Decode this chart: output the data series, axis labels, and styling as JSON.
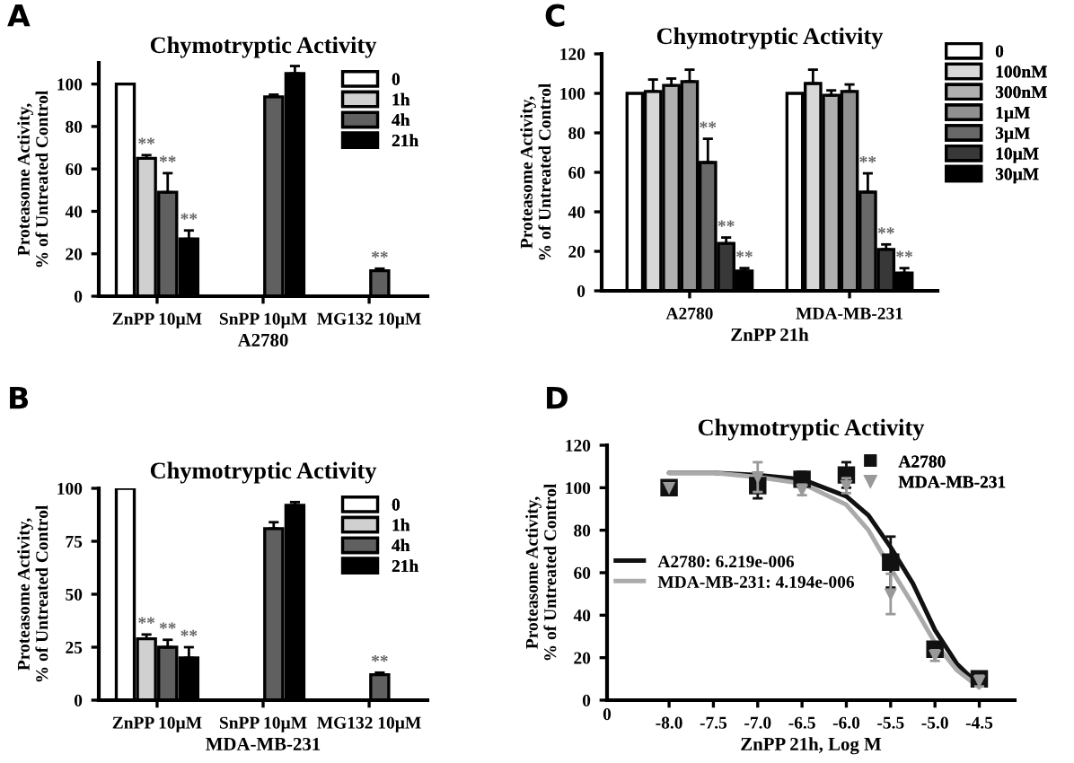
{
  "chart_data": [
    {
      "type": "bar",
      "title": "Chymotryptic Activity",
      "ylabel": "Proteasome Activity,\n% of Untreated Control",
      "xlabel": "A2780",
      "annotations": [
        "A"
      ],
      "categories": [
        "ZnPP 10µM",
        "SnPP 10µM",
        "MG132 10µM"
      ],
      "ylim": [
        0,
        110
      ],
      "yticks": [
        0,
        20,
        40,
        60,
        80,
        100
      ],
      "legend": "top right",
      "grid": false,
      "series": [
        {
          "name": "0",
          "color": "#ffffff",
          "values": [
            100,
            null,
            null
          ],
          "errors": [
            null,
            null,
            null
          ]
        },
        {
          "name": "1h",
          "color": "#d0d0d0",
          "values": [
            65,
            null,
            null
          ],
          "errors": [
            1.5,
            null,
            null
          ],
          "value_labels": [
            "**",
            null,
            null
          ]
        },
        {
          "name": "4h",
          "color": "#606060",
          "values": [
            49,
            94,
            12
          ],
          "errors": [
            9,
            1,
            1
          ],
          "value_labels": [
            "**",
            null,
            "**"
          ]
        },
        {
          "name": "21h",
          "color": "#000000",
          "values": [
            27,
            105,
            null
          ],
          "errors": [
            4,
            3.5,
            null
          ],
          "value_labels": [
            "**",
            null,
            null
          ]
        }
      ]
    },
    {
      "type": "bar",
      "title": "Chymotryptic Activity",
      "ylabel": "Proteasome Activity,\n% of Untreated Control",
      "xlabel": "ZnPP 21h",
      "annotations": [
        "C"
      ],
      "categories": [
        "A2780",
        "MDA-MB-231"
      ],
      "ylim": [
        0,
        120
      ],
      "yticks": [
        0,
        20,
        40,
        60,
        80,
        100,
        120
      ],
      "legend": "right",
      "grid": false,
      "series": [
        {
          "name": "0",
          "color": "#ffffff",
          "values": [
            100,
            100
          ],
          "errors": [
            null,
            null
          ]
        },
        {
          "name": "100nM",
          "color": "#d8d8d8",
          "values": [
            101,
            105
          ],
          "errors": [
            6,
            7
          ]
        },
        {
          "name": "300nM",
          "color": "#b0b0b0",
          "values": [
            104,
            99
          ],
          "errors": [
            3.5,
            2.5
          ]
        },
        {
          "name": "1µM",
          "color": "#909090",
          "values": [
            106,
            101
          ],
          "errors": [
            6,
            3.5
          ]
        },
        {
          "name": "3µM",
          "color": "#686868",
          "values": [
            65,
            50
          ],
          "errors": [
            12,
            9.5
          ],
          "value_labels": [
            "**",
            "**"
          ]
        },
        {
          "name": "10µM",
          "color": "#383838",
          "values": [
            24,
            21
          ],
          "errors": [
            3,
            2.5
          ],
          "value_labels": [
            "**",
            "**"
          ]
        },
        {
          "name": "30µM",
          "color": "#000000",
          "values": [
            10,
            9
          ],
          "errors": [
            1.5,
            2.5
          ],
          "value_labels": [
            "**",
            "**"
          ]
        }
      ]
    },
    {
      "type": "bar",
      "title": "Chymotryptic Activity",
      "ylabel": "Proteasome Activity,\n% of Untreated Control",
      "xlabel": "MDA-MB-231",
      "annotations": [
        "B"
      ],
      "categories": [
        "ZnPP 10µM",
        "SnPP 10µM",
        "MG132 10µM"
      ],
      "ylim": [
        0,
        100
      ],
      "yticks": [
        0,
        25,
        50,
        75,
        100
      ],
      "legend": "top right",
      "grid": false,
      "series": [
        {
          "name": "0",
          "color": "#ffffff",
          "values": [
            100,
            null,
            null
          ],
          "errors": [
            null,
            null,
            null
          ]
        },
        {
          "name": "1h",
          "color": "#d0d0d0",
          "values": [
            29,
            null,
            null
          ],
          "errors": [
            2,
            null,
            null
          ],
          "value_labels": [
            "**",
            null,
            null
          ]
        },
        {
          "name": "4h",
          "color": "#606060",
          "values": [
            25,
            81,
            12
          ],
          "errors": [
            3.5,
            3,
            1
          ],
          "value_labels": [
            "**",
            null,
            "**"
          ]
        },
        {
          "name": "21h",
          "color": "#000000",
          "values": [
            20,
            92,
            null
          ],
          "errors": [
            5,
            1.5,
            null
          ],
          "value_labels": [
            "**",
            null,
            null
          ]
        }
      ]
    },
    {
      "type": "scatter",
      "title": "Chymotryptic Activity",
      "ylabel": "Proteasome Activity,\n% of Untreated Control",
      "xlabel": "ZnPP 21h, Log M",
      "annotations": [
        "D",
        "0"
      ],
      "xlim": [
        -8.7,
        -4.1
      ],
      "xticks": [
        {
          "value": -8.0,
          "label": "-8.0"
        },
        {
          "value": -7.5,
          "label": "-7.5"
        },
        {
          "value": -7.0,
          "label": "-7.0"
        },
        {
          "value": -6.5,
          "label": "-6.5"
        },
        {
          "value": -6.0,
          "label": "-6.0"
        },
        {
          "value": -5.5,
          "label": "-5.5"
        },
        {
          "value": -5.0,
          "label": "-5.0"
        },
        {
          "value": -4.5,
          "label": "-4.5"
        }
      ],
      "ylim": [
        0,
        120
      ],
      "yticks": [
        0,
        20,
        40,
        60,
        80,
        100,
        120
      ],
      "legend": "top right",
      "grid": false,
      "series": [
        {
          "type": "line",
          "name": "A2780: 6.219e-006",
          "color": "#111111",
          "x": [
            -8.0,
            -7.5,
            -7.0,
            -6.5,
            -6.0,
            -5.75,
            -5.5,
            -5.25,
            -5.0,
            -4.75,
            -4.5
          ],
          "values": [
            107,
            107,
            106,
            104,
            96,
            87,
            72,
            55,
            33,
            17,
            7
          ]
        },
        {
          "type": "line",
          "name": "MDA-MB-231: 4.194e-006",
          "color": "#aaaaaa",
          "x": [
            -8.0,
            -7.5,
            -7.0,
            -6.5,
            -6.0,
            -5.75,
            -5.5,
            -5.25,
            -5.0,
            -4.75,
            -4.5
          ],
          "values": [
            107,
            107,
            105,
            102,
            92,
            80,
            62,
            45,
            27,
            14,
            6
          ]
        },
        {
          "name": "A2780",
          "color": "#111111",
          "marker": "square",
          "x": [
            -8.0,
            -7.0,
            -6.5,
            -6.0,
            -5.5,
            -5.0,
            -4.5
          ],
          "values": [
            100,
            101,
            104,
            106,
            65,
            24,
            10
          ],
          "errors": [
            null,
            6,
            3.5,
            6,
            12,
            3,
            1.5
          ]
        },
        {
          "name": "MDA-MB-231",
          "color": "#999999",
          "marker": "triangle",
          "x": [
            -8.0,
            -7.0,
            -6.5,
            -6.0,
            -5.5,
            -5.0,
            -4.5
          ],
          "values": [
            100,
            105,
            99,
            101,
            50,
            21,
            9
          ],
          "errors": [
            null,
            7,
            2.5,
            3.5,
            9.5,
            2.5,
            2.5
          ]
        }
      ]
    }
  ]
}
